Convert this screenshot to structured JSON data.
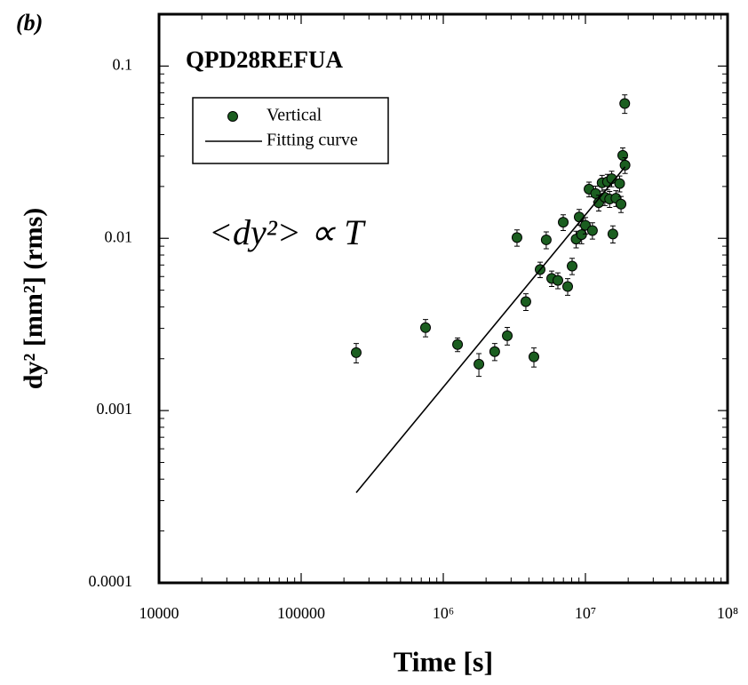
{
  "chart_data": {
    "type": "scatter",
    "panel_label": "(b)",
    "title": "QPD28REFUA",
    "annotation": "<dy²> ∝ T",
    "x_label": "Time [s]",
    "y_label": "dy² [mm²] (rms)",
    "x_log": true,
    "y_log": true,
    "xlim": [
      10000,
      100000000
    ],
    "ylim": [
      0.0001,
      0.2
    ],
    "xticks": [
      10000,
      100000,
      {
        "value": 1000000,
        "label": "10⁶"
      },
      {
        "value": 10000000,
        "label": "10⁷"
      },
      {
        "value": 100000000,
        "label": "10⁸"
      }
    ],
    "yticks": [
      0.0001,
      0.001,
      0.01,
      0.1
    ],
    "series": [
      {
        "name": "Vertical",
        "color": "#1b5e20",
        "x": [
          244000,
          750000,
          1260000,
          1780000,
          2300000,
          2820000,
          3300000,
          3810000,
          4340000,
          4800000,
          5300000,
          5790000,
          6400000,
          6980000,
          7500000,
          8060000,
          8600000,
          9040000,
          9400000,
          10000000,
          10600000,
          11200000,
          11800000,
          12400000,
          13100000,
          13700000,
          14300000,
          14800000,
          15300000,
          15600000,
          16400000,
          17400000,
          17800000,
          18300000,
          19000000,
          18900000
        ],
        "values": [
          0.00217,
          0.00303,
          0.00242,
          0.00186,
          0.0022,
          0.00272,
          0.0101,
          0.00429,
          0.00205,
          0.00659,
          0.0098,
          0.00585,
          0.0057,
          0.0124,
          0.00525,
          0.0069,
          0.0099,
          0.0133,
          0.0105,
          0.0119,
          0.0193,
          0.0111,
          0.0182,
          0.0161,
          0.021,
          0.0173,
          0.0213,
          0.0169,
          0.0222,
          0.0106,
          0.0171,
          0.0208,
          0.0158,
          0.0303,
          0.0266,
          0.0606
        ],
        "errors": [
          0.00028,
          0.00035,
          0.00022,
          0.00028,
          0.00025,
          0.00032,
          0.0011,
          0.00048,
          0.00026,
          0.00068,
          0.0011,
          0.0006,
          0.0006,
          0.0013,
          0.00058,
          0.00075,
          0.0011,
          0.0014,
          0.0012,
          0.0013,
          0.0019,
          0.0012,
          0.0019,
          0.0017,
          0.0022,
          0.0018,
          0.0022,
          0.0018,
          0.0023,
          0.0012,
          0.0018,
          0.0022,
          0.0017,
          0.0032,
          0.0028,
          0.0075
        ]
      },
      {
        "name": "Fitting curve",
        "color": "#000000",
        "type": "line",
        "x": [
          244000,
          19000000
        ],
        "values": [
          0.000334,
          0.026
        ]
      }
    ]
  }
}
